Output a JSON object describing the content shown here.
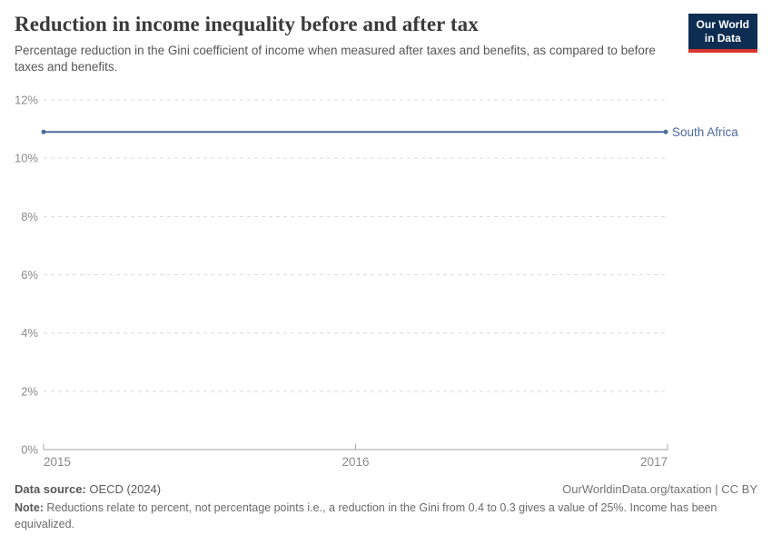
{
  "header": {
    "logo": {
      "line1": "Our World",
      "line2": "in Data"
    }
  },
  "chart_data": {
    "type": "line",
    "title": "Reduction in income inequality before and after tax",
    "subtitle": "Percentage reduction in the Gini coefficient of income when measured after taxes and benefits, as compared to before taxes and benefits.",
    "x": [
      2015,
      2016,
      2017
    ],
    "series": [
      {
        "name": "South Africa",
        "values": [
          10.9,
          10.9,
          10.9
        ],
        "color": "#4c6a9c"
      }
    ],
    "xlabel": "",
    "ylabel": "",
    "ylim": [
      0,
      12
    ],
    "ytick_step": 2,
    "ytick_suffix": "%",
    "grid": "horizontal-dashed",
    "legend_position": "end-of-line-label"
  },
  "footer": {
    "source_label": "Data source:",
    "source_value": " OECD (2024)",
    "attribution": "OurWorldinData.org/taxation | CC BY",
    "note_label": "Note:",
    "note_value": " Reductions relate to percent, not percentage points i.e., a reduction in the Gini from 0.4 to 0.3 gives a value of 25%. Income has been equivalized."
  },
  "colors": {
    "series_line": "#4c6a9c",
    "grid_line": "#dadada",
    "axis_line": "#a5a5a5",
    "tick_label": "#8a8a8a",
    "title_text": "#3a3a3a",
    "subtitle_text": "#565656",
    "logo_background": "#0d2e52",
    "logo_accent": "#d8352f"
  }
}
